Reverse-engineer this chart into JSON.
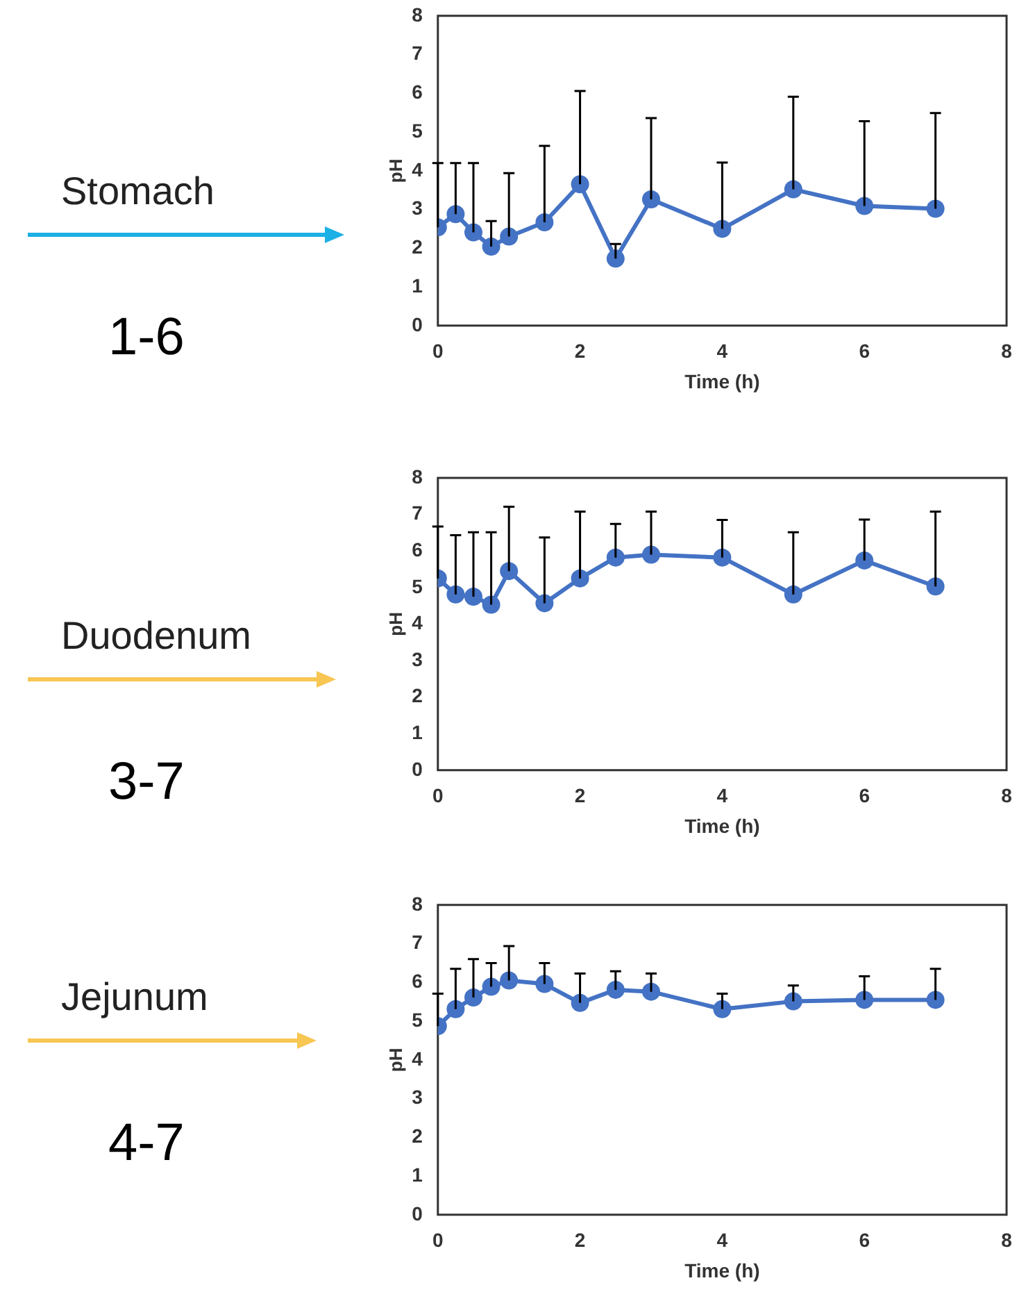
{
  "chart_data": [
    {
      "type": "line",
      "title": "Stomach",
      "annotations": [
        "1-6"
      ],
      "xlabel": "Time (h)",
      "ylabel": "pH",
      "marker": "circle",
      "color": "#4472c4",
      "x": [
        0,
        0.25,
        0.5,
        0.75,
        1,
        1.5,
        2,
        2.5,
        3,
        4,
        5,
        6,
        7
      ],
      "values": [
        2.54,
        2.88,
        2.41,
        2.04,
        2.3,
        2.67,
        3.65,
        1.73,
        3.26,
        2.5,
        3.52,
        3.09,
        3.02
      ],
      "errors": [
        [
          2.54,
          4.2
        ],
        [
          2.88,
          4.2
        ],
        [
          2.41,
          4.2
        ],
        [
          2.04,
          2.7
        ],
        [
          2.3,
          3.94
        ],
        [
          2.67,
          4.64
        ],
        [
          3.65,
          6.06
        ],
        [
          1.73,
          2.11
        ],
        [
          3.26,
          5.36
        ],
        [
          2.5,
          4.21
        ],
        [
          3.52,
          5.91
        ],
        [
          3.09,
          5.28
        ],
        [
          3.02,
          5.49
        ]
      ],
      "xlim": [
        0,
        8
      ],
      "xticks": [
        0,
        2,
        4,
        6,
        8
      ],
      "ylim": [
        0,
        8
      ],
      "yticks": [
        0,
        1,
        2,
        3,
        4,
        5,
        6,
        7,
        8
      ]
    },
    {
      "type": "line",
      "title": "Duodenum",
      "annotations": [
        "3-7"
      ],
      "xlabel": "Time (h)",
      "ylabel": "pH",
      "marker": "circle",
      "color": "#4472c4",
      "x": [
        0,
        0.25,
        0.5,
        0.75,
        1,
        1.5,
        2,
        2.5,
        3,
        4,
        5,
        6,
        7
      ],
      "values": [
        5.25,
        4.81,
        4.75,
        4.53,
        5.45,
        4.57,
        5.25,
        5.82,
        5.9,
        5.82,
        4.81,
        5.74,
        5.03
      ],
      "errors": [
        [
          5.25,
          6.67
        ],
        [
          4.81,
          6.43
        ],
        [
          4.75,
          6.51
        ],
        [
          4.53,
          6.51
        ],
        [
          5.45,
          7.21
        ],
        [
          4.57,
          6.37
        ],
        [
          5.25,
          7.08
        ],
        [
          5.82,
          6.74
        ],
        [
          5.9,
          7.08
        ],
        [
          5.82,
          6.85
        ],
        [
          4.81,
          6.51
        ],
        [
          5.74,
          6.86
        ],
        [
          5.03,
          7.08
        ]
      ],
      "xlim": [
        0,
        8
      ],
      "xticks": [
        0,
        2,
        4,
        6,
        8
      ],
      "ylim": [
        0,
        8
      ],
      "yticks": [
        0,
        1,
        2,
        3,
        4,
        5,
        6,
        7,
        8
      ]
    },
    {
      "type": "line",
      "title": "Jejunum",
      "annotations": [
        "4-7"
      ],
      "xlabel": "Time (h)",
      "ylabel": "pH",
      "marker": "circle",
      "color": "#4472c4",
      "x": [
        0,
        0.25,
        0.5,
        0.75,
        1,
        1.5,
        2,
        2.5,
        3,
        4,
        5,
        6,
        7
      ],
      "values": [
        4.87,
        5.31,
        5.61,
        5.89,
        6.05,
        5.96,
        5.47,
        5.81,
        5.76,
        5.31,
        5.51,
        5.55,
        5.55
      ],
      "errors": [
        [
          4.87,
          5.71
        ],
        [
          5.31,
          6.35
        ],
        [
          5.61,
          6.6
        ],
        [
          5.89,
          6.5
        ],
        [
          6.05,
          6.94
        ],
        [
          5.96,
          6.5
        ],
        [
          5.47,
          6.23
        ],
        [
          5.81,
          6.29
        ],
        [
          5.76,
          6.23
        ],
        [
          5.31,
          5.71
        ],
        [
          5.51,
          5.92
        ],
        [
          5.55,
          6.16
        ],
        [
          5.55,
          6.35
        ]
      ],
      "xlim": [
        0,
        8
      ],
      "xticks": [
        0,
        2,
        4,
        6,
        8
      ],
      "ylim": [
        0,
        8
      ],
      "yticks": [
        0,
        1,
        2,
        3,
        4,
        5,
        6,
        7,
        8
      ]
    }
  ]
}
